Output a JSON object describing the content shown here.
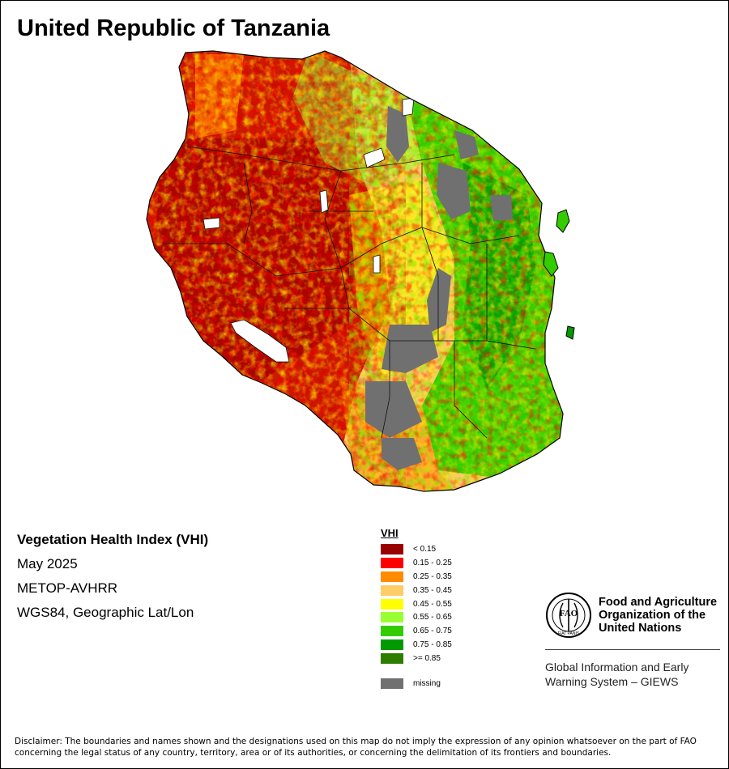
{
  "title": "United Republic of Tanzania",
  "info": {
    "index_name": "Vegetation Health Index (VHI)",
    "period": "May 2025",
    "sensor": "METOP-AVHRR",
    "projection": "WGS84, Geographic Lat/Lon"
  },
  "legend": {
    "title": "VHI",
    "classes": [
      {
        "label": "< 0.15",
        "color": "#990000"
      },
      {
        "label": "0.15 - 0.25",
        "color": "#ff0000"
      },
      {
        "label": "0.25 - 0.35",
        "color": "#ff8c00"
      },
      {
        "label": "0.35 - 0.45",
        "color": "#ffcc66"
      },
      {
        "label": "0.45 - 0.55",
        "color": "#ffff00"
      },
      {
        "label": "0.55 - 0.65",
        "color": "#99ff33"
      },
      {
        "label": "0.65 - 0.75",
        "color": "#33cc00"
      },
      {
        "label": "0.75 - 0.85",
        "color": "#009900"
      },
      {
        "label": ">= 0.85",
        "color": "#2e7d00"
      }
    ],
    "missing": {
      "label": "missing",
      "color": "#707070"
    }
  },
  "organization": {
    "name_line1": "Food and Agriculture",
    "name_line2": "Organization of the",
    "name_line3": "United Nations",
    "logo_text": "FAO",
    "logo_motto": "FIAT PANIS",
    "system_line1": "Global Information and Early",
    "system_line2": "Warning System – GIEWS"
  },
  "disclaimer": "Disclaimer: The boundaries and names shown and the designations used on this map do not imply the expression of any opinion whatsoever on the part of FAO concerning the legal status of any country, territory, area or of its authorities, or concerning the delimitation of its frontiers and boundaries."
}
